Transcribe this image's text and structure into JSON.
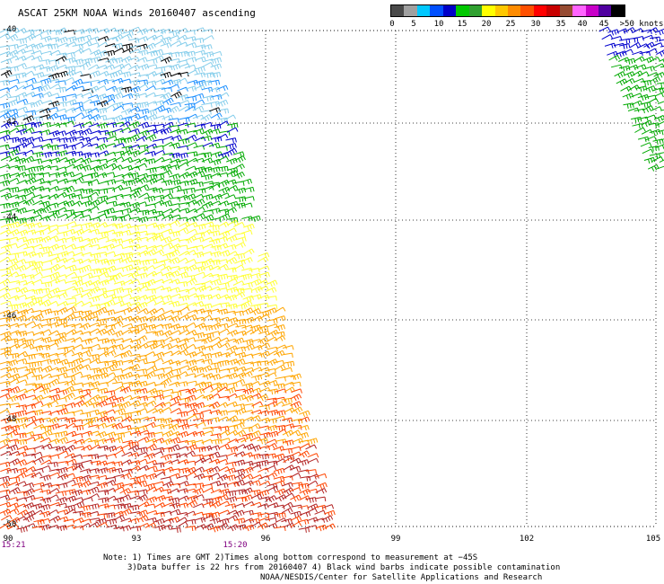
{
  "title": "ASCAT 25KM NOAA Winds 20160407 ascending",
  "colorbar": {
    "labels": [
      "0",
      "5",
      "10",
      "15",
      "20",
      "25",
      "30",
      "35",
      "40",
      "45",
      ">50 knots"
    ],
    "colors": [
      "#4a4a4a",
      "#a0a0a0",
      "#00c8ff",
      "#0050ff",
      "#0000c8",
      "#00c800",
      "#30a030",
      "#ffff00",
      "#ffc800",
      "#ff8c00",
      "#ff5000",
      "#ff0000",
      "#c80000",
      "#964b32",
      "#ff64ff",
      "#c800c8",
      "#5000a0",
      "#000000"
    ]
  },
  "map": {
    "lat_labels": [
      "-40",
      "-42",
      "-44",
      "-46",
      "-48",
      "-50"
    ],
    "lon_labels": [
      "90",
      "93",
      "96",
      "99",
      "102",
      "105"
    ],
    "time_labels": [
      "15:21",
      "15:20"
    ],
    "wind_color_scale": {
      "calm": "#87ceeb",
      "light": "#1e90ff",
      "moderate_low": "#0000cd",
      "moderate": "#00aa00",
      "fresh": "#ffff33",
      "strong": "#ffa500",
      "gale": "#ff4500",
      "storm": "#b22222",
      "contaminated": "#000000"
    }
  },
  "notes": {
    "line1": "Note: 1) Times are GMT 2)Times along bottom correspond to measurement at −45S",
    "line2": "3)Data buffer is 22 hrs from 20160407 4) Black wind barbs indicate possible contamination",
    "line3": "NOAA/NESDIS/Center for Satellite Applications and Research"
  }
}
